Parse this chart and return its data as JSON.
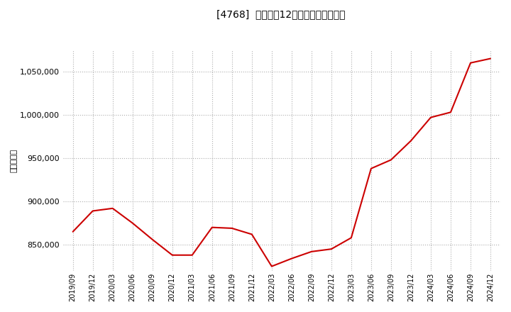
{
  "title": "[4768]  売上高の12か月移動合計の推移",
  "ylabel": "（百万円）",
  "line_color": "#cc0000",
  "background_color": "#ffffff",
  "grid_color": "#999999",
  "ylim": [
    820000,
    1075000
  ],
  "yticks": [
    850000,
    900000,
    950000,
    1000000,
    1050000
  ],
  "dates": [
    "2019/09",
    "2019/12",
    "2020/03",
    "2020/06",
    "2020/09",
    "2020/12",
    "2021/03",
    "2021/06",
    "2021/09",
    "2021/12",
    "2022/03",
    "2022/06",
    "2022/09",
    "2022/12",
    "2023/03",
    "2023/06",
    "2023/09",
    "2023/12",
    "2024/03",
    "2024/06",
    "2024/09",
    "2024/12"
  ],
  "values": [
    865000,
    889000,
    892000,
    875000,
    856000,
    838000,
    838000,
    870000,
    869000,
    862000,
    825000,
    834000,
    842000,
    845000,
    858000,
    938000,
    948000,
    970000,
    997000,
    1003000,
    1060000,
    1065000
  ]
}
